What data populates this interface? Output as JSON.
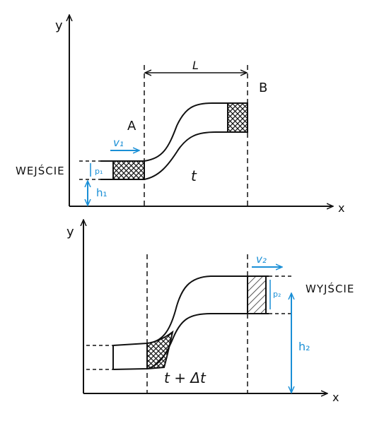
{
  "top_diagram": {
    "y_axis": "y",
    "x_axis": "x",
    "length_label": "L",
    "point_a": "A",
    "point_b": "B",
    "time_label": "t",
    "inlet_label": "WEJŚCIE",
    "velocity_label": "v₁",
    "pressure_label": "p₁",
    "height_label": "h₁"
  },
  "bottom_diagram": {
    "y_axis": "y",
    "x_axis": "x",
    "time_label": "t + Δt",
    "outlet_label": "WYJŚCIE",
    "velocity_label": "v₂",
    "pressure_label": "p₂",
    "height_label": "h₂"
  },
  "colors": {
    "ink": "#111111",
    "accent": "#1a8fd6"
  }
}
